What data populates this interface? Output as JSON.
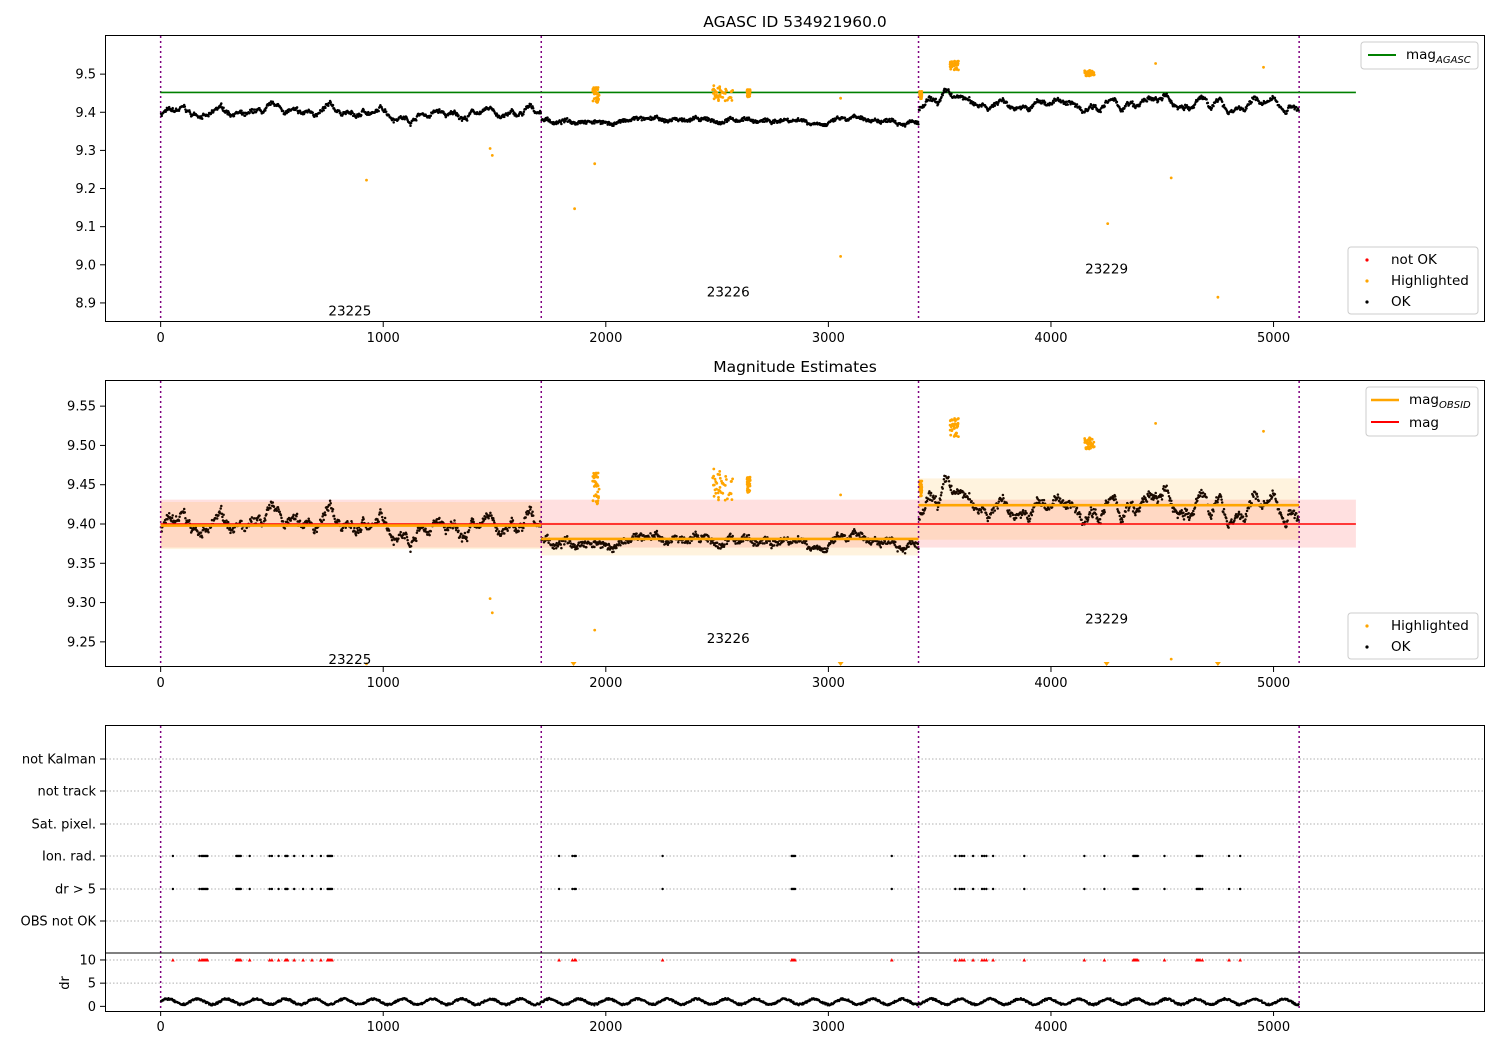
{
  "panels": {
    "top": {
      "title": "AGASC ID 534921960.0",
      "legend_line": {
        "label": "mag",
        "subscript": "AGASC",
        "color": "#008000"
      },
      "legend_points": [
        {
          "label": "not OK",
          "color": "#ff0000"
        },
        {
          "label": "Highlighted",
          "color": "#ffa500"
        },
        {
          "label": "OK",
          "color": "#000000"
        }
      ]
    },
    "middle": {
      "title": "Magnitude Estimates",
      "legend_lines": [
        {
          "label": "mag",
          "subscript": "OBSID",
          "color": "#ffa500"
        },
        {
          "label": "mag",
          "subscript": "",
          "color": "#ff0000"
        }
      ],
      "legend_points": [
        {
          "label": "Highlighted",
          "color": "#ffa500"
        },
        {
          "label": "OK",
          "color": "#000000"
        }
      ]
    },
    "bottom": {
      "flag_labels": [
        "not Kalman",
        "not track",
        "Sat. pixel.",
        "Ion. rad.",
        "dr > 5",
        "OBS not OK"
      ],
      "dr_label": "dr"
    }
  },
  "chart_data": [
    {
      "type": "scatter",
      "title": "AGASC ID 534921960.0",
      "xlim": [
        -250,
        5950
      ],
      "ylim": [
        8.85,
        9.6
      ],
      "xticks": [
        0,
        1000,
        2000,
        3000,
        4000,
        5000
      ],
      "yticks": [
        8.9,
        9.0,
        9.1,
        9.2,
        9.3,
        9.4,
        9.5
      ],
      "grid": false,
      "legend": "top-right (line), bottom-right (points)",
      "agasc_mag": 9.452,
      "obsid_boundaries": [
        0,
        1710,
        3405,
        5115
      ],
      "obsids": [
        {
          "label": "23225",
          "x": 850,
          "y": 8.88
        },
        {
          "label": "23226",
          "x": 2550,
          "y": 8.93
        },
        {
          "label": "23229",
          "x": 4250,
          "y": 8.99
        }
      ],
      "segments": [
        {
          "x0": 0,
          "x1": 1710,
          "base": 9.395,
          "amp": 0.035
        },
        {
          "x0": 1710,
          "x1": 3405,
          "base": 9.378,
          "amp": 0.02
        },
        {
          "x0": 3405,
          "x1": 5115,
          "base": 9.42,
          "amp": 0.045
        }
      ],
      "highlighted_clusters": [
        {
          "x0": 1940,
          "x1": 1970,
          "y0": 9.425,
          "y1": 9.465
        },
        {
          "x0": 2480,
          "x1": 2570,
          "y0": 9.43,
          "y1": 9.47
        },
        {
          "x0": 2635,
          "x1": 2650,
          "y0": 9.44,
          "y1": 9.46
        },
        {
          "x0": 3545,
          "x1": 3585,
          "y0": 9.51,
          "y1": 9.535
        },
        {
          "x0": 3410,
          "x1": 3420,
          "y0": 9.435,
          "y1": 9.455
        },
        {
          "x0": 4150,
          "x1": 4195,
          "y0": 9.495,
          "y1": 9.51
        }
      ],
      "highlighted_outliers": [
        {
          "x": 925,
          "y": 9.222
        },
        {
          "x": 1480,
          "y": 9.305
        },
        {
          "x": 1490,
          "y": 9.287
        },
        {
          "x": 1860,
          "y": 9.147
        },
        {
          "x": 1950,
          "y": 9.265
        },
        {
          "x": 3055,
          "y": 9.022
        },
        {
          "x": 3055,
          "y": 9.437
        },
        {
          "x": 4255,
          "y": 9.108
        },
        {
          "x": 4470,
          "y": 9.528
        },
        {
          "x": 4540,
          "y": 9.228
        },
        {
          "x": 4750,
          "y": 8.915
        },
        {
          "x": 4955,
          "y": 9.518
        }
      ]
    },
    {
      "type": "scatter",
      "title": "Magnitude Estimates",
      "xlim": [
        -250,
        5950
      ],
      "ylim": [
        9.218,
        9.582
      ],
      "xticks": [
        0,
        1000,
        2000,
        3000,
        4000,
        5000
      ],
      "yticks": [
        9.25,
        9.3,
        9.35,
        9.4,
        9.45,
        9.5,
        9.55
      ],
      "grid": false,
      "legend": "top-right (lines), bottom-right (points)",
      "mag": 9.4,
      "mag_band": [
        9.37,
        9.431
      ],
      "mag_obsid": [
        {
          "x0": 0,
          "x1": 1710,
          "mag": 9.398,
          "band": [
            9.368,
            9.428
          ]
        },
        {
          "x0": 1710,
          "x1": 3405,
          "mag": 9.381,
          "band": [
            9.36,
            9.402
          ]
        },
        {
          "x0": 3405,
          "x1": 5115,
          "mag": 9.424,
          "band": [
            9.38,
            9.458
          ]
        }
      ],
      "obsids": [
        {
          "label": "23225",
          "x": 850,
          "y": 9.228
        },
        {
          "label": "23226",
          "x": 2550,
          "y": 9.255
        },
        {
          "label": "23229",
          "x": 4250,
          "y": 9.28
        }
      ],
      "offscale_markers": [
        1855,
        3055,
        4250,
        4750
      ]
    },
    {
      "type": "scatter",
      "xlim": [
        -250,
        5950
      ],
      "flag_rows": [
        "not Kalman",
        "not track",
        "Sat. pixel.",
        "Ion. rad.",
        "dr > 5",
        "OBS not OK"
      ],
      "flag_events_x": [
        55,
        175,
        185,
        190,
        195,
        200,
        205,
        210,
        340,
        345,
        350,
        355,
        360,
        400,
        490,
        500,
        530,
        560,
        565,
        570,
        600,
        640,
        680,
        720,
        750,
        755,
        760,
        765,
        770,
        1790,
        1850,
        1860,
        1865,
        2255,
        2835,
        2840,
        2845,
        2850,
        3285,
        3570,
        3590,
        3600,
        3610,
        3650,
        3690,
        3700,
        3710,
        3740,
        3880,
        4150,
        4240,
        4370,
        4375,
        4380,
        4385,
        4390,
        4510,
        4655,
        4660,
        4665,
        4670,
        4680,
        4800,
        4850
      ],
      "dr_ylim": [
        -1,
        11.5
      ],
      "dr_yticks": [
        0,
        5,
        10
      ],
      "dr_limit": 10,
      "dr_baseline": 1.0
    }
  ]
}
